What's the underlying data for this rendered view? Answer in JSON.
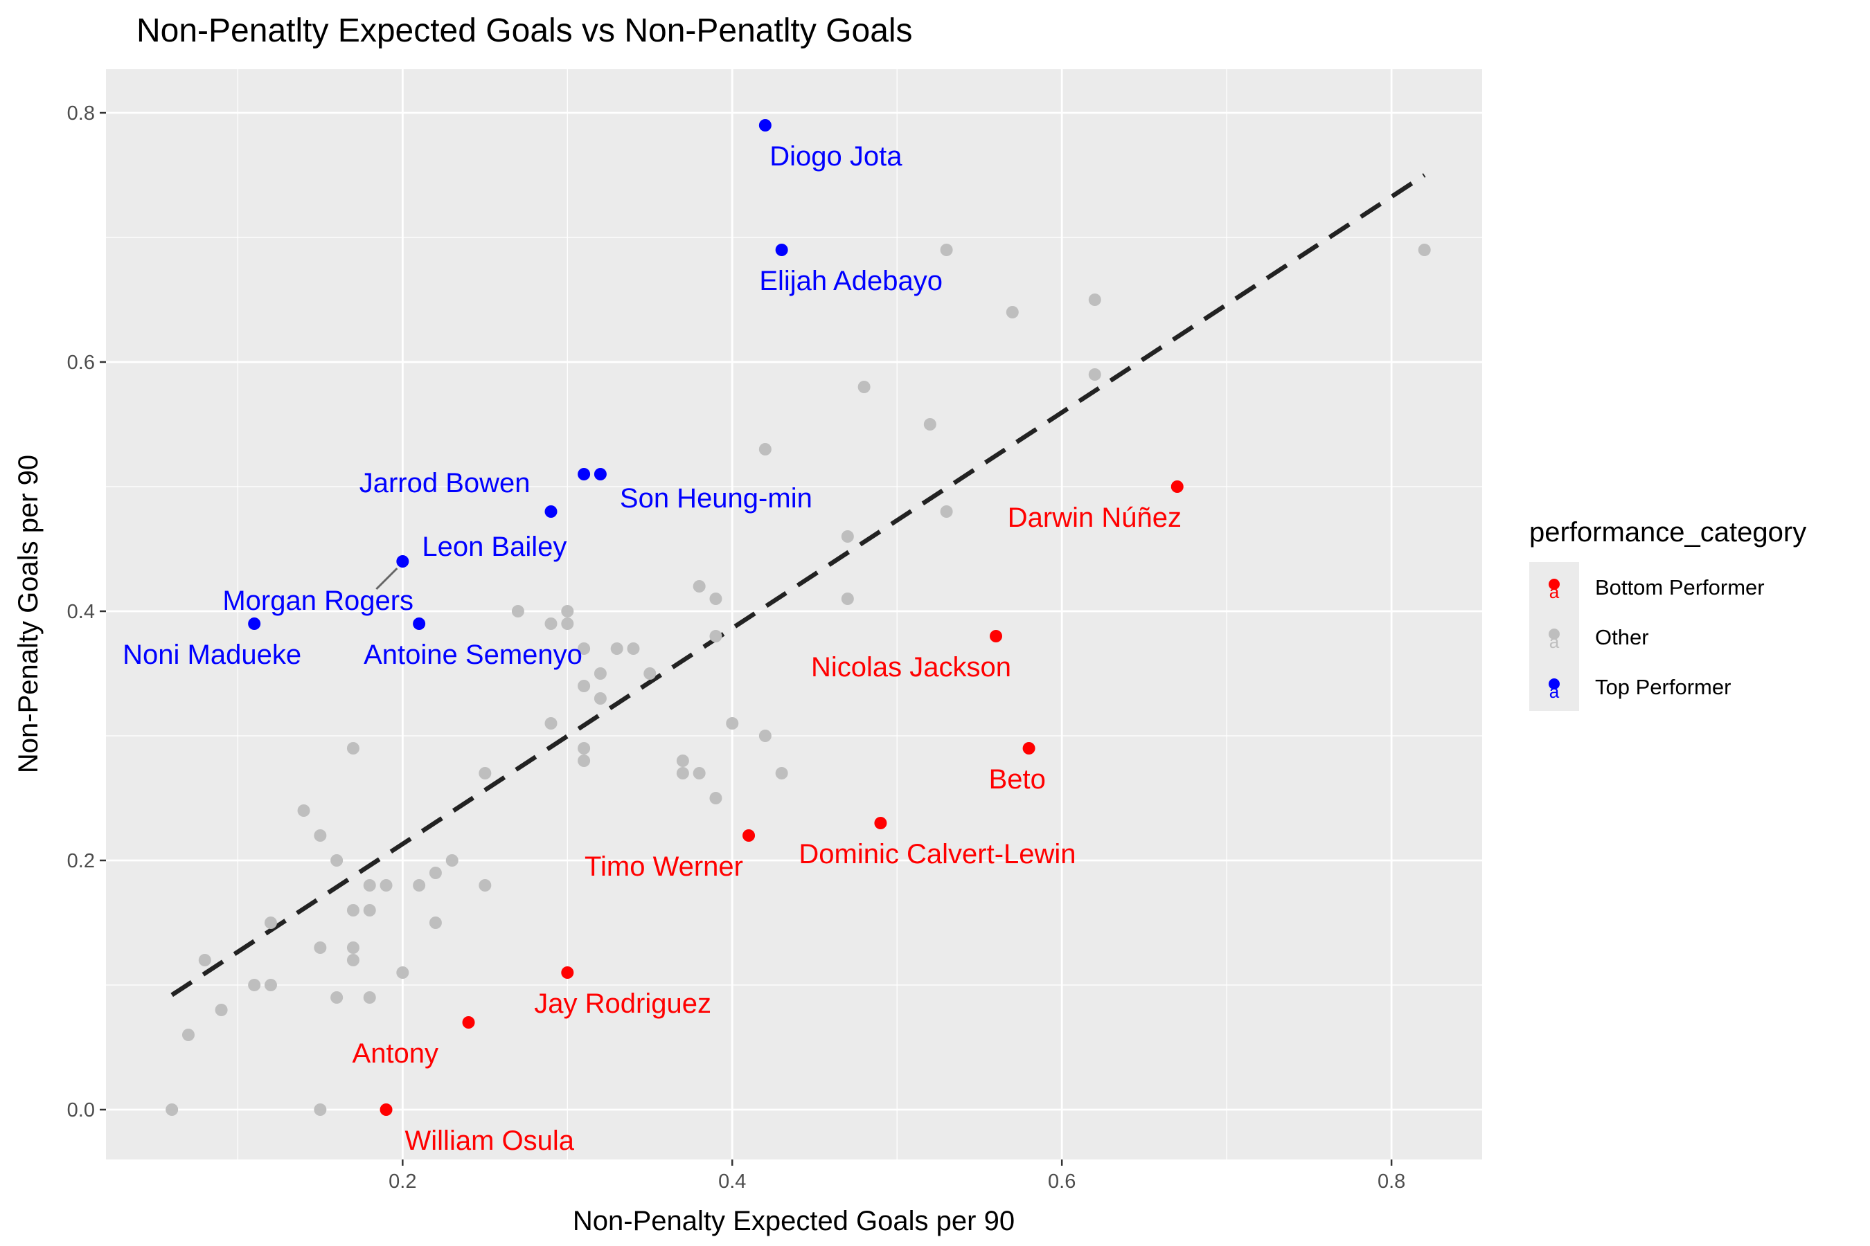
{
  "chart_data": {
    "type": "scatter",
    "title": "Non-Penatlty Expected Goals vs Non-Penatlty Goals",
    "xlabel": "Non-Penalty Expected Goals per 90",
    "ylabel": "Non-Penalty Goals per 90",
    "xlim": [
      0.02,
      0.855
    ],
    "ylim": [
      -0.04,
      0.835
    ],
    "x_ticks": [
      0.2,
      0.4,
      0.6,
      0.8
    ],
    "x_tick_labels": [
      "0.2",
      "0.4",
      "0.6",
      "0.8"
    ],
    "y_ticks": [
      0.0,
      0.2,
      0.4,
      0.6,
      0.8
    ],
    "y_tick_labels": [
      "0.0",
      "0.2",
      "0.4",
      "0.6",
      "0.8"
    ],
    "grid": true,
    "panel_background": "#ebebeb",
    "grid_color": "#ffffff",
    "legend": {
      "title": "performance_category",
      "position": "right",
      "key_glyph": "a",
      "entries": [
        {
          "label": "Bottom Performer",
          "color": "#ff0000"
        },
        {
          "label": "Other",
          "color": "#bebebe"
        },
        {
          "label": "Top Performer",
          "color": "#0000ff"
        }
      ]
    },
    "reference_line": {
      "style": "dashed",
      "color": "#222222",
      "x": [
        0.06,
        0.82
      ],
      "y": [
        0.092,
        0.75
      ]
    },
    "series": [
      {
        "name": "Top Performer",
        "color": "#0000ff",
        "points": [
          {
            "x": 0.42,
            "y": 0.79,
            "label": "Diogo Jota"
          },
          {
            "x": 0.43,
            "y": 0.69,
            "label": "Elijah Adebayo"
          },
          {
            "x": 0.29,
            "y": 0.48,
            "label": "Jarrod Bowen"
          },
          {
            "x": 0.31,
            "y": 0.51,
            "label": ""
          },
          {
            "x": 0.32,
            "y": 0.51,
            "label": "Son Heung-min"
          },
          {
            "x": 0.2,
            "y": 0.44,
            "label": "Morgan Rogers"
          },
          {
            "x": 0.21,
            "y": 0.39,
            "label": "Antoine Semenyo"
          },
          {
            "x": 0.11,
            "y": 0.39,
            "label": "Noni Madueke"
          },
          {
            "x": 0.2,
            "y": 0.44,
            "label": "Leon Bailey"
          }
        ]
      },
      {
        "name": "Bottom Performer",
        "color": "#ff0000",
        "points": [
          {
            "x": 0.67,
            "y": 0.5,
            "label": "Darwin Núñez"
          },
          {
            "x": 0.56,
            "y": 0.38,
            "label": "Nicolas Jackson"
          },
          {
            "x": 0.58,
            "y": 0.29,
            "label": "Beto"
          },
          {
            "x": 0.49,
            "y": 0.23,
            "label": "Dominic Calvert-Lewin"
          },
          {
            "x": 0.41,
            "y": 0.22,
            "label": "Timo Werner"
          },
          {
            "x": 0.3,
            "y": 0.11,
            "label": "Jay Rodriguez"
          },
          {
            "x": 0.24,
            "y": 0.07,
            "label": "Antony"
          },
          {
            "x": 0.19,
            "y": 0.0,
            "label": "William Osula"
          }
        ]
      },
      {
        "name": "Other",
        "color": "#bebebe",
        "points": [
          {
            "x": 0.82,
            "y": 0.69
          },
          {
            "x": 0.53,
            "y": 0.69
          },
          {
            "x": 0.62,
            "y": 0.65
          },
          {
            "x": 0.57,
            "y": 0.64
          },
          {
            "x": 0.62,
            "y": 0.59
          },
          {
            "x": 0.48,
            "y": 0.58
          },
          {
            "x": 0.52,
            "y": 0.55
          },
          {
            "x": 0.42,
            "y": 0.53
          },
          {
            "x": 0.53,
            "y": 0.48
          },
          {
            "x": 0.47,
            "y": 0.46
          },
          {
            "x": 0.38,
            "y": 0.42
          },
          {
            "x": 0.39,
            "y": 0.41
          },
          {
            "x": 0.47,
            "y": 0.41
          },
          {
            "x": 0.27,
            "y": 0.4
          },
          {
            "x": 0.3,
            "y": 0.4
          },
          {
            "x": 0.29,
            "y": 0.39
          },
          {
            "x": 0.3,
            "y": 0.39
          },
          {
            "x": 0.39,
            "y": 0.38
          },
          {
            "x": 0.31,
            "y": 0.37
          },
          {
            "x": 0.33,
            "y": 0.37
          },
          {
            "x": 0.34,
            "y": 0.37
          },
          {
            "x": 0.32,
            "y": 0.35
          },
          {
            "x": 0.35,
            "y": 0.35
          },
          {
            "x": 0.31,
            "y": 0.34
          },
          {
            "x": 0.32,
            "y": 0.33
          },
          {
            "x": 0.29,
            "y": 0.31
          },
          {
            "x": 0.4,
            "y": 0.31
          },
          {
            "x": 0.42,
            "y": 0.3
          },
          {
            "x": 0.17,
            "y": 0.29
          },
          {
            "x": 0.31,
            "y": 0.29
          },
          {
            "x": 0.31,
            "y": 0.28
          },
          {
            "x": 0.37,
            "y": 0.28
          },
          {
            "x": 0.25,
            "y": 0.27
          },
          {
            "x": 0.37,
            "y": 0.27
          },
          {
            "x": 0.38,
            "y": 0.27
          },
          {
            "x": 0.43,
            "y": 0.27
          },
          {
            "x": 0.39,
            "y": 0.25
          },
          {
            "x": 0.14,
            "y": 0.24
          },
          {
            "x": 0.15,
            "y": 0.22
          },
          {
            "x": 0.16,
            "y": 0.2
          },
          {
            "x": 0.23,
            "y": 0.2
          },
          {
            "x": 0.22,
            "y": 0.19
          },
          {
            "x": 0.18,
            "y": 0.18
          },
          {
            "x": 0.19,
            "y": 0.18
          },
          {
            "x": 0.21,
            "y": 0.18
          },
          {
            "x": 0.25,
            "y": 0.18
          },
          {
            "x": 0.17,
            "y": 0.16
          },
          {
            "x": 0.18,
            "y": 0.16
          },
          {
            "x": 0.12,
            "y": 0.15
          },
          {
            "x": 0.22,
            "y": 0.15
          },
          {
            "x": 0.15,
            "y": 0.13
          },
          {
            "x": 0.17,
            "y": 0.13
          },
          {
            "x": 0.08,
            "y": 0.12
          },
          {
            "x": 0.17,
            "y": 0.12
          },
          {
            "x": 0.2,
            "y": 0.11
          },
          {
            "x": 0.11,
            "y": 0.1
          },
          {
            "x": 0.12,
            "y": 0.1
          },
          {
            "x": 0.16,
            "y": 0.09
          },
          {
            "x": 0.18,
            "y": 0.09
          },
          {
            "x": 0.09,
            "y": 0.08
          },
          {
            "x": 0.07,
            "y": 0.06
          },
          {
            "x": 0.06,
            "y": 0.0
          },
          {
            "x": 0.15,
            "y": 0.0
          }
        ]
      }
    ]
  }
}
